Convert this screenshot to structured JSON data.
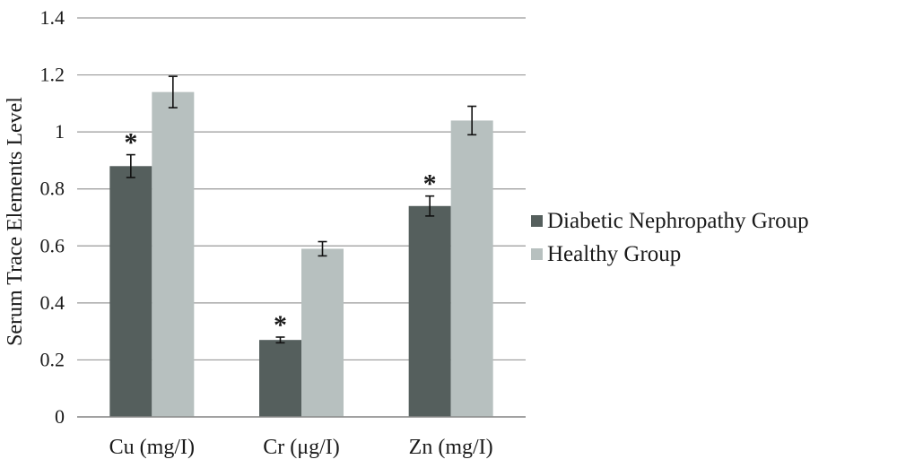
{
  "chart_data": {
    "type": "bar",
    "categories": [
      "Cu (mg/I)",
      "Cr (μg/I)",
      "Zn (mg/I)"
    ],
    "series": [
      {
        "name": "Diabetic Nephropathy Group",
        "color": "#555f5d",
        "values": [
          0.88,
          0.27,
          0.74
        ],
        "errors": [
          0.04,
          0.01,
          0.035
        ],
        "annotations": [
          "*",
          "*",
          "*"
        ]
      },
      {
        "name": "Healthy Group",
        "color": "#b7c0bf",
        "values": [
          1.14,
          0.59,
          1.04
        ],
        "errors": [
          0.055,
          0.025,
          0.05
        ]
      }
    ],
    "ylabel": "Serum Trace Elements Level",
    "xlabel": "",
    "ylim": [
      0,
      1.4
    ],
    "yticks": [
      "0",
      "0.2",
      "0.4",
      "0.6",
      "0.8",
      "1",
      "1.2",
      "1.4"
    ],
    "grid": true,
    "legend_position": "right"
  }
}
